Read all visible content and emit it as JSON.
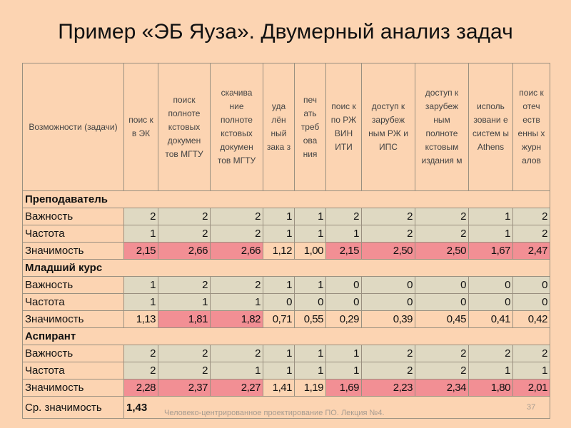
{
  "title": "Пример «ЭБ Яуза». Двумерный анализ задач",
  "header": {
    "first": "Возможности (задачи)",
    "columns": [
      "поис к в ЭК",
      "поиск полноте кстовых докумен тов МГТУ",
      "скачива ние полноте кстовых докумен тов МГТУ",
      "уда лён ный зака з",
      "печ ать треб ова ния",
      "поис к по РЖ ВИН ИТИ",
      "доступ к зарубеж ным РЖ и ИПС",
      "доступ к зарубеж ным полноте кстовым издания м",
      "исполь зовани е систем ы Athens",
      "поис к отеч еств енны х журн алов"
    ]
  },
  "groups": [
    {
      "name": "Преподаватель",
      "rows": [
        {
          "label": "Важность",
          "values": [
            "2",
            "2",
            "2",
            "1",
            "1",
            "2",
            "2",
            "2",
            "1",
            "2"
          ]
        },
        {
          "label": "Частота",
          "values": [
            "1",
            "2",
            "2",
            "1",
            "1",
            "1",
            "2",
            "2",
            "1",
            "2"
          ]
        },
        {
          "label": "Значимость",
          "values": [
            "2,15",
            "2,66",
            "2,66",
            "1,12",
            "1,00",
            "2,15",
            "2,50",
            "2,50",
            "1,67",
            "2,47"
          ],
          "highlight": [
            true,
            true,
            true,
            false,
            false,
            true,
            true,
            true,
            true,
            true
          ]
        }
      ]
    },
    {
      "name": "Младший курс",
      "rows": [
        {
          "label": "Важность",
          "values": [
            "1",
            "2",
            "2",
            "1",
            "1",
            "0",
            "0",
            "0",
            "0",
            "0"
          ]
        },
        {
          "label": "Частота",
          "values": [
            "1",
            "1",
            "1",
            "0",
            "0",
            "0",
            "0",
            "0",
            "0",
            "0"
          ]
        },
        {
          "label": "Значимость",
          "values": [
            "1,13",
            "1,81",
            "1,82",
            "0,71",
            "0,55",
            "0,29",
            "0,39",
            "0,45",
            "0,41",
            "0,42"
          ],
          "highlight": [
            false,
            true,
            true,
            false,
            false,
            false,
            false,
            false,
            false,
            false
          ]
        }
      ]
    },
    {
      "name": "Аспирант",
      "rows": [
        {
          "label": "Важность",
          "values": [
            "2",
            "2",
            "2",
            "1",
            "1",
            "1",
            "2",
            "2",
            "2",
            "2"
          ]
        },
        {
          "label": "Частота",
          "values": [
            "2",
            "2",
            "1",
            "1",
            "1",
            "1",
            "2",
            "2",
            "1",
            "1"
          ]
        },
        {
          "label": "Значимость",
          "values": [
            "2,28",
            "2,37",
            "2,27",
            "1,41",
            "1,19",
            "1,69",
            "2,23",
            "2,34",
            "1,80",
            "2,01"
          ],
          "highlight": [
            true,
            true,
            true,
            false,
            false,
            true,
            true,
            true,
            true,
            true
          ]
        }
      ]
    }
  ],
  "average": {
    "label": "Ср. значимость",
    "value": "1,43"
  },
  "footer": "Человеко-центрированное проектирование ПО. Лекция №4.",
  "page_number": "37",
  "colors": {
    "background": "#fcd4b2",
    "data_cell": "#dfd9c2",
    "highlight": "#f28f94"
  }
}
